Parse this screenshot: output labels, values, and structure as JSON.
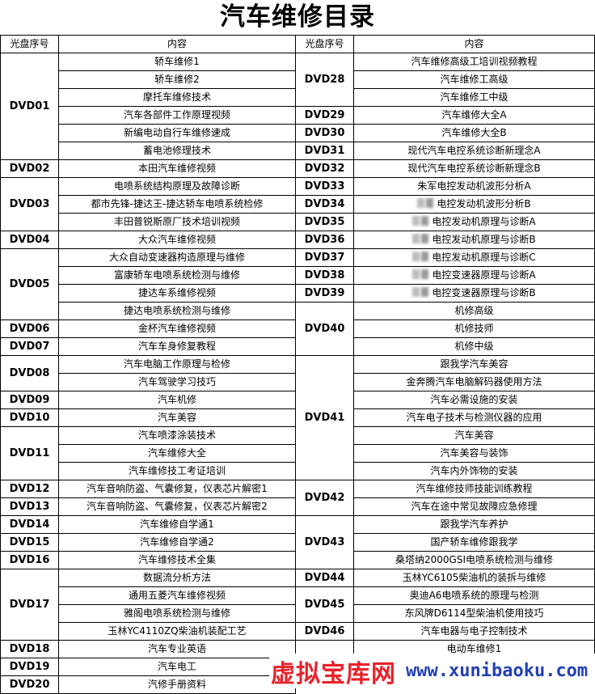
{
  "title": "汽车维修目录",
  "headers": {
    "disc": "光盘序号",
    "content": "内容"
  },
  "left": [
    {
      "disc": "DVD01",
      "items": [
        "轿车维修1",
        "轿车维修2",
        "摩托车维修技术",
        "汽车各部件工作原理视频",
        "新编电动自行车维修速成",
        "蓄电池修理技术"
      ]
    },
    {
      "disc": "DVD02",
      "items": [
        "本田汽车维修视频"
      ]
    },
    {
      "disc": "DVD03",
      "items": [
        "电喷系统结构原理及故障诊断",
        "都市先锋-捷达王-捷达轿车电喷系统检修",
        "丰田普锐斯原厂技术培训视频"
      ]
    },
    {
      "disc": "DVD04",
      "items": [
        "大众汽车维修视频"
      ]
    },
    {
      "disc": "DVD05",
      "items": [
        "大众自动变速器构造原理与维修",
        "富康轿车电喷系统检测与维修",
        "捷达车系维修视频",
        "捷达电喷系统检测与维修"
      ]
    },
    {
      "disc": "DVD06",
      "items": [
        "金杯汽车维修视频"
      ]
    },
    {
      "disc": "DVD07",
      "items": [
        "汽车车身修复教程"
      ]
    },
    {
      "disc": "DVD08",
      "items": [
        "汽车电脑工作原理与检修",
        "汽车驾驶学习技巧"
      ]
    },
    {
      "disc": "DVD09",
      "items": [
        "汽车机修"
      ]
    },
    {
      "disc": "DVD10",
      "items": [
        "汽车美容"
      ]
    },
    {
      "disc": "DVD11",
      "items": [
        "汽车喷漆涂装技术",
        "汽车维修大全",
        "汽车维修技工考证培训"
      ]
    },
    {
      "disc": "DVD12",
      "items": [
        "汽车音响防盗、气囊修复，仪表芯片解密1"
      ]
    },
    {
      "disc": "DVD13",
      "items": [
        "汽车音响防盗、气囊修复，仪表芯片解密2"
      ]
    },
    {
      "disc": "DVD14",
      "items": [
        "汽车维修自学通1"
      ]
    },
    {
      "disc": "DVD15",
      "items": [
        "汽车维修自学通2"
      ]
    },
    {
      "disc": "DVD16",
      "items": [
        "汽车维修技术全集"
      ]
    },
    {
      "disc": "DVD17",
      "items": [
        "数据流分析方法",
        "通用五菱汽车维修视频",
        "雅阁电喷系统检测与维修",
        "玉林YC4110ZQ柴油机装配工艺"
      ]
    },
    {
      "disc": "DVD18",
      "items": [
        "汽车专业英语"
      ]
    },
    {
      "disc": "DVD19",
      "items": [
        "汽车电工"
      ]
    },
    {
      "disc": "DVD20",
      "items": [
        "汽修手册资料"
      ]
    }
  ],
  "right": [
    {
      "disc": "DVD28",
      "items": [
        "汽车维修高级工培训视频教程",
        "汽车维修工高级",
        "汽车维修工中级"
      ]
    },
    {
      "disc": "DVD29",
      "items": [
        "汽车维修大全A"
      ]
    },
    {
      "disc": "DVD30",
      "items": [
        "汽车维修大全B"
      ]
    },
    {
      "disc": "DVD31",
      "items": [
        "现代汽车电控系统诊断新理念A"
      ]
    },
    {
      "disc": "DVD32",
      "items": [
        "现代汽车电控系统诊断新理念B"
      ]
    },
    {
      "disc": "DVD33",
      "items": [
        "朱军电控发动机波形分析A"
      ]
    },
    {
      "disc": "DVD34",
      "items": [
        "电控发动机波形分析B"
      ],
      "blurred": true
    },
    {
      "disc": "DVD35",
      "items": [
        "电控发动机原理与诊断A"
      ],
      "blurred": true
    },
    {
      "disc": "DVD36",
      "items": [
        "电控发动机原理与诊断B"
      ],
      "blurred": true
    },
    {
      "disc": "DVD37",
      "items": [
        "电控发动机原理与诊断C"
      ],
      "blurred": true
    },
    {
      "disc": "DVD38",
      "items": [
        "电控变速器原理与诊断A"
      ],
      "blurred": true
    },
    {
      "disc": "DVD39",
      "items": [
        "电控变速器原理与诊断B"
      ],
      "blurred": true
    },
    {
      "disc": "DVD40",
      "items": [
        "机修高级",
        "机修技师",
        "机修中级"
      ]
    },
    {
      "disc": "DVD41",
      "items": [
        "跟我学汽车美容",
        "金奔腾汽车电脑解码器使用方法",
        "汽车必需设施的安装",
        "汽车电子技术与检测仪器的应用",
        "汽车美容",
        "汽车美容与装饰",
        "汽车内外饰物的安装"
      ]
    },
    {
      "disc": "DVD42",
      "items": [
        "汽车维修技师技能训练教程",
        "汽车在途中常见故障应急修理"
      ]
    },
    {
      "disc": "DVD43",
      "items": [
        "跟我学汽车养护",
        "国产轿车维修跟我学",
        "桑塔纳2000GSI电喷系统检测与维修"
      ]
    },
    {
      "disc": "DVD44",
      "items": [
        "玉林YC6105柴油机的装拆与维修"
      ]
    },
    {
      "disc": "DVD45",
      "items": [
        "奥迪A6电喷系统的原理与检测",
        "东风牌D6114型柴油机使用技巧"
      ]
    },
    {
      "disc": "DVD46",
      "items": [
        "汽车电器与电子控制技术"
      ]
    },
    {
      "disc": "",
      "items": [
        "电动车维修1",
        ""
      ]
    }
  ],
  "watermark": {
    "name": "虚拟宝库网",
    "url": "www.xunibaoku.com"
  }
}
